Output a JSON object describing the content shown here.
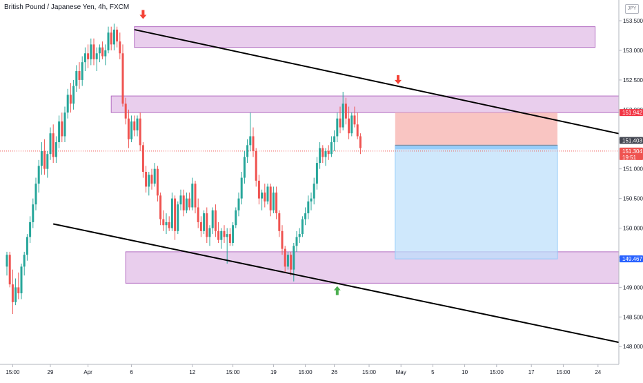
{
  "chart_data": {
    "type": "candlestick",
    "title": "British Pound / Japanese Yen, 4h, FXCM",
    "currency": "JPY",
    "ylim": [
      147.7,
      153.85
    ],
    "y_ticks": [
      "153.500",
      "153.000",
      "152.500",
      "152.000",
      "151.500",
      "151.000",
      "150.500",
      "150.000",
      "149.500",
      "149.000",
      "148.500",
      "148.000"
    ],
    "x_ticks": [
      "15:00",
      "29",
      "Apr",
      "6",
      "12",
      "15:00",
      "19",
      "15:00",
      "26",
      "15:00",
      "May",
      "5",
      "10",
      "15:00",
      "17",
      "15:00",
      "24"
    ],
    "price_labels": {
      "upper_zone": "151.942",
      "current_price": "151.403",
      "last_price": "151.304",
      "countdown": "19:51",
      "lower_target": "149.467"
    },
    "colors": {
      "up": "#26a69a",
      "down": "#ef5350",
      "zone": "#ce93d8",
      "stop": "#f7b6b3",
      "target": "#bbdefb",
      "trend": "#000000",
      "arrow_down": "#f44336",
      "arrow_up": "#4caf50"
    },
    "zones": [
      {
        "name": "supply-zone-top",
        "x_start": 44,
        "x_end": 203,
        "y_low": 153.05,
        "y_high": 153.4
      },
      {
        "name": "supply-zone-middle",
        "x_start": 36,
        "x_end": 219,
        "y_low": 151.95,
        "y_high": 152.23
      },
      {
        "name": "demand-zone-bottom",
        "x_start": 41,
        "x_end": 219,
        "y_low": 149.07,
        "y_high": 149.6
      }
    ],
    "position": {
      "x_start": 134,
      "x_end": 190,
      "entry": 151.4,
      "stop": 151.95,
      "target": 149.48
    },
    "trendlines": [
      {
        "name": "upper-trendline",
        "x1": 44,
        "y1": 153.35,
        "x2": 225,
        "y2": 151.45
      },
      {
        "name": "lower-trendline",
        "x1": 16,
        "y1": 150.07,
        "x2": 225,
        "y2": 147.93
      }
    ],
    "arrows": [
      {
        "name": "down-arrow-top",
        "x": 47,
        "y": 153.6,
        "dir": "down"
      },
      {
        "name": "down-arrow-right",
        "x": 135,
        "y": 152.5,
        "dir": "down"
      },
      {
        "name": "up-arrow-bottom",
        "x": 114,
        "y": 148.95,
        "dir": "up"
      }
    ],
    "candles": [
      [
        0,
        149.35,
        149.6,
        149.2,
        149.55
      ],
      [
        1,
        149.55,
        149.6,
        149.0,
        149.05
      ],
      [
        2,
        149.05,
        149.3,
        148.55,
        148.75
      ],
      [
        3,
        148.75,
        149.15,
        148.7,
        149.0
      ],
      [
        4,
        149.0,
        149.25,
        148.8,
        148.9
      ],
      [
        5,
        148.9,
        149.4,
        148.8,
        149.35
      ],
      [
        6,
        149.35,
        149.6,
        149.2,
        149.55
      ],
      [
        7,
        149.55,
        149.9,
        149.45,
        149.85
      ],
      [
        8,
        149.85,
        150.2,
        149.75,
        150.1
      ],
      [
        9,
        150.1,
        150.5,
        150.0,
        150.4
      ],
      [
        10,
        150.4,
        150.85,
        150.3,
        150.75
      ],
      [
        11,
        150.75,
        151.15,
        150.6,
        151.05
      ],
      [
        12,
        151.05,
        151.45,
        150.9,
        151.3
      ],
      [
        13,
        151.3,
        151.5,
        150.9,
        151.0
      ],
      [
        14,
        151.0,
        151.3,
        150.85,
        151.25
      ],
      [
        15,
        151.25,
        151.7,
        151.15,
        151.6
      ],
      [
        16,
        151.6,
        151.75,
        151.1,
        151.2
      ],
      [
        17,
        151.2,
        151.55,
        151.1,
        151.45
      ],
      [
        18,
        151.45,
        151.9,
        151.35,
        151.8
      ],
      [
        19,
        151.8,
        151.95,
        151.45,
        151.55
      ],
      [
        20,
        151.55,
        152.05,
        151.45,
        151.95
      ],
      [
        21,
        151.95,
        152.35,
        151.85,
        152.25
      ],
      [
        22,
        152.25,
        152.45,
        151.95,
        152.1
      ],
      [
        23,
        152.1,
        152.5,
        152.0,
        152.4
      ],
      [
        24,
        152.4,
        152.75,
        152.3,
        152.65
      ],
      [
        25,
        152.65,
        152.8,
        152.35,
        152.5
      ],
      [
        26,
        152.5,
        152.9,
        152.4,
        152.8
      ],
      [
        27,
        152.8,
        153.05,
        152.65,
        152.95
      ],
      [
        28,
        152.95,
        153.1,
        152.7,
        152.85
      ],
      [
        29,
        152.85,
        153.2,
        152.75,
        153.1
      ],
      [
        30,
        153.1,
        153.2,
        152.75,
        152.85
      ],
      [
        31,
        152.85,
        153.05,
        152.65,
        152.95
      ],
      [
        32,
        152.95,
        153.1,
        152.8,
        153.05
      ],
      [
        33,
        153.05,
        153.15,
        152.85,
        152.9
      ],
      [
        34,
        152.9,
        153.1,
        152.75,
        153.0
      ],
      [
        35,
        153.0,
        153.4,
        152.95,
        153.3
      ],
      [
        36,
        153.3,
        153.4,
        153.0,
        153.1
      ],
      [
        37,
        153.1,
        153.45,
        153.0,
        153.35
      ],
      [
        38,
        153.35,
        153.4,
        153.05,
        153.15
      ],
      [
        39,
        153.15,
        153.3,
        152.85,
        152.95
      ],
      [
        40,
        152.95,
        153.1,
        152.05,
        152.1
      ],
      [
        41,
        152.1,
        152.2,
        151.75,
        151.85
      ],
      [
        42,
        151.85,
        152.0,
        151.35,
        151.5
      ],
      [
        43,
        151.5,
        151.9,
        151.45,
        151.8
      ],
      [
        44,
        151.8,
        151.9,
        151.55,
        151.65
      ],
      [
        45,
        151.65,
        151.9,
        151.55,
        151.85
      ],
      [
        46,
        151.85,
        151.95,
        151.3,
        151.4
      ],
      [
        47,
        151.4,
        151.45,
        150.85,
        150.95
      ],
      [
        48,
        150.95,
        151.05,
        150.6,
        150.7
      ],
      [
        49,
        150.7,
        150.95,
        150.55,
        150.9
      ],
      [
        50,
        150.9,
        151.0,
        150.65,
        150.75
      ],
      [
        51,
        150.75,
        151.1,
        150.7,
        151.0
      ],
      [
        52,
        151.0,
        151.05,
        150.45,
        150.55
      ],
      [
        53,
        150.55,
        150.6,
        150.05,
        150.15
      ],
      [
        54,
        150.15,
        150.3,
        149.95,
        150.05
      ],
      [
        55,
        150.05,
        150.25,
        149.9,
        150.1
      ],
      [
        56,
        150.1,
        150.2,
        149.95,
        150.0
      ],
      [
        57,
        150.0,
        150.6,
        149.95,
        150.5
      ],
      [
        58,
        150.5,
        150.55,
        149.8,
        149.95
      ],
      [
        59,
        149.95,
        150.45,
        149.9,
        150.4
      ],
      [
        60,
        150.4,
        150.65,
        150.3,
        150.55
      ],
      [
        61,
        150.55,
        150.65,
        150.2,
        150.3
      ],
      [
        62,
        150.3,
        150.6,
        150.25,
        150.5
      ],
      [
        63,
        150.5,
        150.6,
        150.3,
        150.35
      ],
      [
        64,
        150.35,
        150.85,
        150.3,
        150.75
      ],
      [
        65,
        150.75,
        150.8,
        150.25,
        150.35
      ],
      [
        66,
        150.35,
        150.5,
        150.0,
        150.1
      ],
      [
        67,
        150.1,
        150.2,
        149.85,
        149.95
      ],
      [
        68,
        149.95,
        150.3,
        149.9,
        150.25
      ],
      [
        69,
        150.25,
        150.35,
        149.75,
        149.85
      ],
      [
        70,
        149.85,
        150.05,
        149.7,
        150.0
      ],
      [
        71,
        150.0,
        150.35,
        149.9,
        150.3
      ],
      [
        72,
        150.3,
        150.4,
        149.85,
        149.95
      ],
      [
        73,
        149.95,
        150.1,
        149.75,
        149.8
      ],
      [
        74,
        149.8,
        150.0,
        149.65,
        149.95
      ],
      [
        75,
        149.95,
        150.05,
        149.75,
        149.85
      ],
      [
        76,
        149.85,
        150.0,
        149.4,
        149.9
      ],
      [
        77,
        149.9,
        150.0,
        149.7,
        149.75
      ],
      [
        78,
        149.75,
        150.1,
        149.7,
        150.05
      ],
      [
        79,
        150.05,
        150.35,
        150.0,
        150.3
      ],
      [
        80,
        150.3,
        150.6,
        150.2,
        150.5
      ],
      [
        81,
        150.5,
        150.95,
        150.4,
        150.85
      ],
      [
        82,
        150.85,
        151.3,
        150.75,
        151.2
      ],
      [
        83,
        151.2,
        151.5,
        151.1,
        151.4
      ],
      [
        84,
        151.4,
        151.95,
        151.3,
        151.55
      ],
      [
        85,
        151.55,
        151.7,
        151.2,
        151.3
      ],
      [
        86,
        151.3,
        151.35,
        150.7,
        150.8
      ],
      [
        87,
        150.8,
        150.9,
        150.4,
        150.5
      ],
      [
        88,
        150.5,
        150.65,
        150.3,
        150.6
      ],
      [
        89,
        150.6,
        150.75,
        150.35,
        150.45
      ],
      [
        90,
        150.45,
        150.75,
        150.4,
        150.7
      ],
      [
        91,
        150.7,
        150.75,
        150.2,
        150.3
      ],
      [
        92,
        150.3,
        150.7,
        150.25,
        150.6
      ],
      [
        93,
        150.6,
        150.7,
        150.15,
        150.25
      ],
      [
        94,
        150.25,
        150.3,
        149.85,
        149.95
      ],
      [
        95,
        149.95,
        150.05,
        149.55,
        149.65
      ],
      [
        96,
        149.65,
        149.7,
        149.25,
        149.35
      ],
      [
        97,
        149.35,
        149.6,
        149.3,
        149.55
      ],
      [
        98,
        149.55,
        149.6,
        149.2,
        149.3
      ],
      [
        99,
        149.3,
        149.75,
        149.1,
        149.7
      ],
      [
        100,
        149.7,
        149.95,
        149.6,
        149.85
      ],
      [
        101,
        149.85,
        150.0,
        149.75,
        149.9
      ],
      [
        102,
        149.9,
        150.2,
        149.85,
        150.15
      ],
      [
        103,
        150.15,
        150.35,
        150.05,
        150.25
      ],
      [
        104,
        150.25,
        150.55,
        150.15,
        150.45
      ],
      [
        105,
        150.45,
        150.6,
        150.3,
        150.5
      ],
      [
        106,
        150.5,
        150.85,
        150.4,
        150.75
      ],
      [
        107,
        150.75,
        151.2,
        150.65,
        151.1
      ],
      [
        108,
        151.1,
        151.45,
        151.0,
        151.35
      ],
      [
        109,
        151.35,
        151.4,
        151.1,
        151.2
      ],
      [
        110,
        151.2,
        151.35,
        151.05,
        151.3
      ],
      [
        111,
        151.3,
        151.4,
        151.15,
        151.25
      ],
      [
        112,
        151.25,
        151.55,
        151.2,
        151.45
      ],
      [
        113,
        151.45,
        151.65,
        151.3,
        151.55
      ],
      [
        114,
        151.55,
        151.95,
        151.45,
        151.85
      ],
      [
        115,
        151.85,
        152.05,
        151.6,
        151.7
      ],
      [
        116,
        151.7,
        152.3,
        151.65,
        152.1
      ],
      [
        117,
        152.1,
        152.2,
        151.75,
        151.85
      ],
      [
        118,
        151.85,
        152.05,
        151.5,
        151.6
      ],
      [
        119,
        151.6,
        151.95,
        151.55,
        151.9
      ],
      [
        120,
        151.9,
        152.05,
        151.7,
        151.75
      ],
      [
        121,
        151.75,
        151.95,
        151.5,
        151.55
      ],
      [
        122,
        151.55,
        151.6,
        151.25,
        151.35
      ]
    ]
  }
}
